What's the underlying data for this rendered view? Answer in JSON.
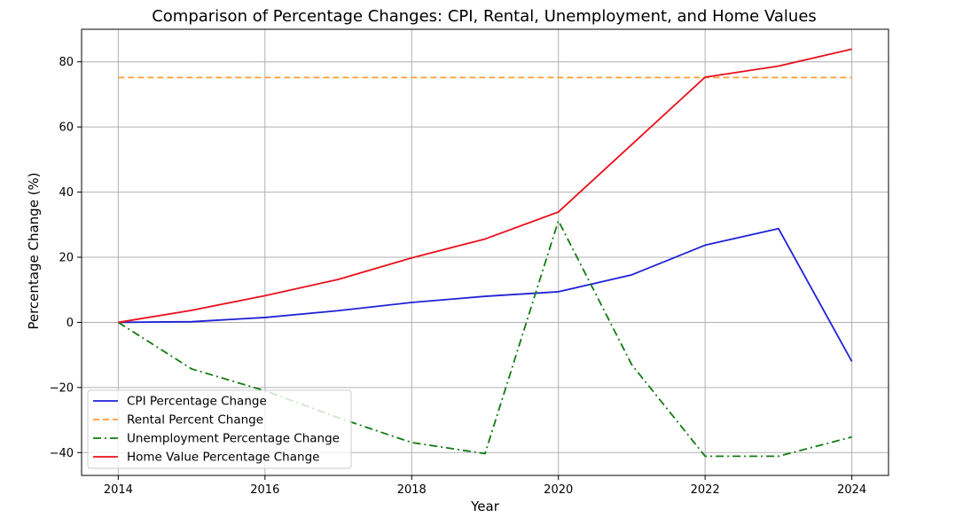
{
  "chart_data": {
    "type": "line",
    "title": "Comparison of Percentage Changes: CPI, Rental, Unemployment, and Home Values",
    "xlabel": "Year",
    "ylabel": "Percentage Change (%)",
    "x": [
      2014,
      2015,
      2016,
      2017,
      2018,
      2019,
      2020,
      2021,
      2022,
      2023,
      2024
    ],
    "x_ticks": [
      "2014",
      "2016",
      "2018",
      "2020",
      "2022",
      "2024"
    ],
    "y_ticks": [
      "−40",
      "−20",
      "0",
      "20",
      "40",
      "60",
      "80"
    ],
    "xlim": [
      2013.5,
      2024.5
    ],
    "ylim": [
      -47,
      90
    ],
    "grid": true,
    "legend_position": "lower-left",
    "series": [
      {
        "name": "CPI Percentage Change",
        "color": "#1f22d6",
        "style": "solid",
        "values": [
          0,
          0.2,
          1.5,
          3.6,
          6.1,
          8.0,
          9.4,
          14.6,
          23.7,
          28.8,
          -12
        ]
      },
      {
        "name": "Rental Percent Change",
        "color": "#ff9c33",
        "style": "dashed",
        "values": [
          75.2,
          75.2,
          75.2,
          75.2,
          75.2,
          75.2,
          75.2,
          75.2,
          75.2,
          75.2,
          75.2
        ]
      },
      {
        "name": "Unemployment Percentage Change",
        "color": "#137a13",
        "style": "dashdot",
        "values": [
          0,
          -14.3,
          -21,
          -29.3,
          -36.9,
          -40.3,
          31.2,
          -13,
          -41.1,
          -41.1,
          -35.2
        ]
      },
      {
        "name": "Home Value Percentage Change",
        "color": "#e8101c",
        "style": "solid",
        "values": [
          0,
          3.7,
          8.2,
          13.2,
          19.8,
          25.6,
          33.9,
          54.6,
          75.3,
          78.7,
          83.9
        ]
      }
    ]
  }
}
